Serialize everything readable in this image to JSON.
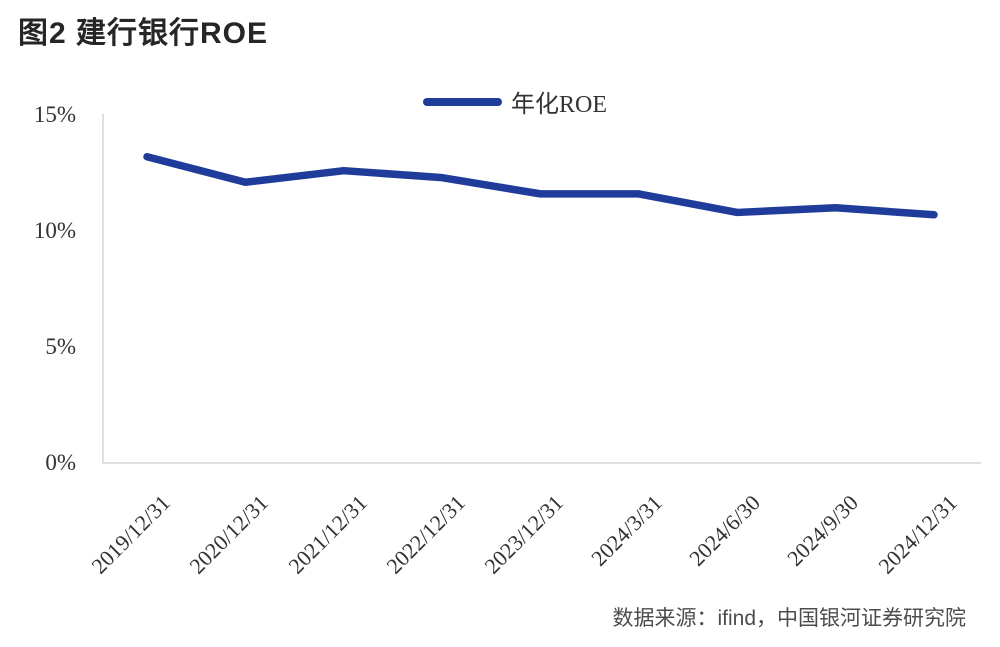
{
  "figure": {
    "title": "图2  建行银行ROE",
    "source": "数据来源：ifind，中国银河证券研究院"
  },
  "legend": {
    "label": "年化ROE"
  },
  "colors": {
    "line": "#1f3c9b",
    "axis": "#e0e0e0",
    "title_text": "#262626",
    "tick_text": "#333333",
    "source_text": "#4d4d4d"
  },
  "chart_data": {
    "type": "line",
    "title": "图2 建行银行ROE",
    "categories": [
      "2019/12/31",
      "2020/12/31",
      "2021/12/31",
      "2022/12/31",
      "2023/12/31",
      "2024/3/31",
      "2024/6/30",
      "2024/9/30",
      "2024/12/31"
    ],
    "series": [
      {
        "name": "年化ROE",
        "values": [
          13.2,
          12.1,
          12.6,
          12.3,
          11.6,
          11.6,
          10.8,
          11.0,
          10.7
        ]
      }
    ],
    "xlabel": "",
    "ylabel": "",
    "ylim": [
      0,
      15
    ],
    "y_tick_values": [
      0,
      5,
      10,
      15
    ],
    "y_tick_labels": [
      "0%",
      "5%",
      "10%",
      "15%"
    ],
    "grid": false,
    "legend_position": "top-center"
  }
}
